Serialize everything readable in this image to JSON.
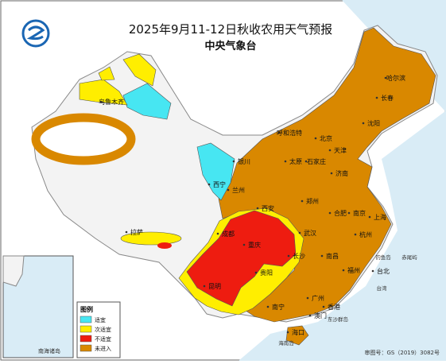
{
  "header": {
    "title": "2025年9月11-12日秋收农用天气预报",
    "subtitle": "中央气象台"
  },
  "legend": {
    "title": "图例",
    "items": [
      {
        "label": "适宜",
        "color": "#47e6f2"
      },
      {
        "label": "次适宜",
        "color": "#ffee00"
      },
      {
        "label": "不适宜",
        "color": "#ee1c10"
      },
      {
        "label": "未进入",
        "color": "#d98800"
      }
    ]
  },
  "cities": [
    "哈尔滨",
    "长春",
    "沈阳",
    "呼和浩特",
    "北京",
    "天津",
    "石家庄",
    "太原",
    "银川",
    "济南",
    "西宁",
    "兰州",
    "郑州",
    "西安",
    "合肥",
    "南京",
    "上海",
    "成都",
    "武汉",
    "杭州",
    "重庆",
    "长沙",
    "南昌",
    "福州",
    "贵阳",
    "台北",
    "昆明",
    "南宁",
    "广州",
    "香港",
    "澳门",
    "海口",
    "乌鲁木齐",
    "拉萨"
  ],
  "places": [
    "钓鱼岛",
    "赤尾屿",
    "台湾",
    "东沙群岛",
    "海南岛"
  ],
  "inset": {
    "label": "南海诸岛"
  },
  "footer": {
    "review": "审图号：GS（2019）3082号"
  }
}
